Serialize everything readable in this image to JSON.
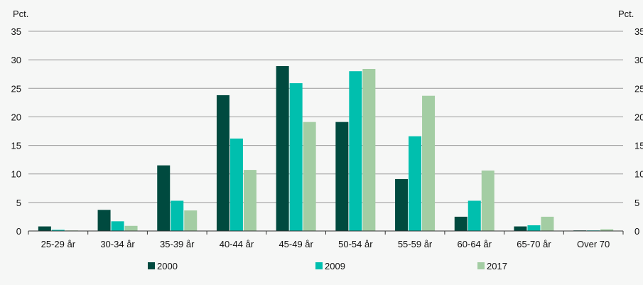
{
  "chart_data": {
    "type": "bar",
    "title": "",
    "xlabel": "",
    "ylabel_left": "Pct.",
    "ylabel_right": "Pct.",
    "ylim": [
      0,
      35
    ],
    "yticks": [
      0,
      5,
      10,
      15,
      20,
      25,
      30,
      35
    ],
    "grid": true,
    "legend_position": "bottom",
    "categories": [
      "25-29 år",
      "30-34 år",
      "35-39 år",
      "40-44 år",
      "45-49 år",
      "50-54 år",
      "55-59 år",
      "60-64 år",
      "65-70 år",
      "Over 70"
    ],
    "series": [
      {
        "name": "2000",
        "color": "#004a3f",
        "values": [
          0.8,
          3.7,
          11.5,
          23.8,
          28.9,
          19.1,
          9.1,
          2.5,
          0.8,
          0.1
        ]
      },
      {
        "name": "2009",
        "color": "#00bfae",
        "values": [
          0.2,
          1.7,
          5.3,
          16.2,
          25.9,
          28.0,
          16.6,
          5.3,
          1.0,
          0.1
        ]
      },
      {
        "name": "2017",
        "color": "#a3cda3",
        "values": [
          0.1,
          0.9,
          3.6,
          10.7,
          19.1,
          28.4,
          23.7,
          10.6,
          2.5,
          0.3
        ]
      }
    ]
  }
}
